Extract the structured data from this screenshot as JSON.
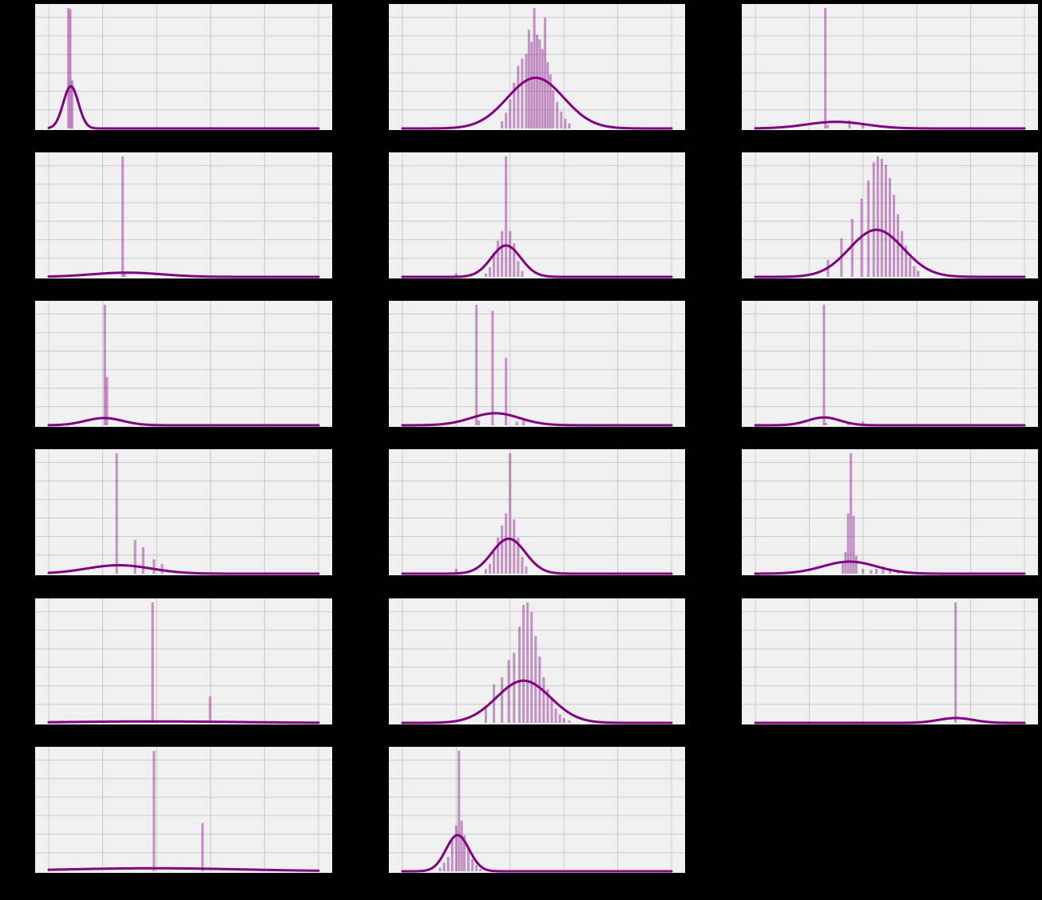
{
  "colors": {
    "figure_background": "#000000",
    "axes_background": "#f0f0f0",
    "grid": "#cbcbcb",
    "curve": "#800080",
    "bars": "#800080",
    "bar_opacity": 0.4
  },
  "layout": {
    "rows": 6,
    "cols": 3
  },
  "chart_data": [
    {
      "type": "bar",
      "title": "",
      "grid": true,
      "xlim": [
        0,
        100
      ],
      "bars": [
        [
          7.3,
          1.0
        ],
        [
          8.0,
          0.99
        ],
        [
          8.7,
          0.4
        ]
      ],
      "curve": {
        "mean": 8.2,
        "sd": 2.8,
        "peak": 0.35
      }
    },
    {
      "type": "bar",
      "title": "",
      "grid": true,
      "xlim": [
        0,
        100
      ],
      "bars": [
        [
          37,
          0.06
        ],
        [
          38.5,
          0.13
        ],
        [
          40,
          0.24
        ],
        [
          41.5,
          0.38
        ],
        [
          43,
          0.52
        ],
        [
          44.5,
          0.58
        ],
        [
          46,
          0.62
        ],
        [
          47,
          0.82
        ],
        [
          48,
          0.72
        ],
        [
          49,
          1.0
        ],
        [
          50,
          0.78
        ],
        [
          51,
          0.74
        ],
        [
          52,
          0.66
        ],
        [
          53,
          0.92
        ],
        [
          54,
          0.55
        ],
        [
          55,
          0.45
        ],
        [
          56,
          0.32
        ],
        [
          57.5,
          0.22
        ],
        [
          59,
          0.14
        ],
        [
          60.5,
          0.08
        ],
        [
          62,
          0.04
        ]
      ],
      "curve": {
        "mean": 49.5,
        "sd": 10.5,
        "peak": 0.42
      }
    },
    {
      "type": "bar",
      "title": "",
      "grid": true,
      "xlim": [
        0,
        100
      ],
      "bars": [
        [
          26,
          1.0
        ],
        [
          26.9,
          0.03
        ],
        [
          35,
          0.07
        ],
        [
          40,
          0.04
        ]
      ],
      "curve": {
        "mean": 30,
        "sd": 11,
        "peak": 0.055
      }
    },
    {
      "type": "bar",
      "title": "",
      "grid": true,
      "xlim": [
        0,
        100
      ],
      "bars": [
        [
          27.4,
          1.0
        ],
        [
          28.1,
          0.03
        ]
      ],
      "curve": {
        "mean": 29,
        "sd": 13,
        "peak": 0.035
      }
    },
    {
      "type": "bar",
      "title": "",
      "grid": true,
      "xlim": [
        0,
        100
      ],
      "bars": [
        [
          20,
          0.03
        ],
        [
          31,
          0.03
        ],
        [
          32.5,
          0.08
        ],
        [
          34,
          0.2
        ],
        [
          35.5,
          0.3
        ],
        [
          37,
          0.38
        ],
        [
          38.5,
          1.0
        ],
        [
          40,
          0.38
        ],
        [
          41.5,
          0.28
        ],
        [
          43,
          0.13
        ],
        [
          44.5,
          0.05
        ]
      ],
      "curve": {
        "mean": 38.5,
        "sd": 5.5,
        "peak": 0.26
      }
    },
    {
      "type": "bar",
      "title": "",
      "grid": true,
      "xlim": [
        0,
        100
      ],
      "bars": [
        [
          27,
          0.14
        ],
        [
          32,
          0.32
        ],
        [
          36,
          0.48
        ],
        [
          39.5,
          0.65
        ],
        [
          42,
          0.8
        ],
        [
          44,
          0.95
        ],
        [
          45.5,
          1.0
        ],
        [
          47,
          0.98
        ],
        [
          48.5,
          0.93
        ],
        [
          50,
          0.82
        ],
        [
          51.5,
          0.68
        ],
        [
          53,
          0.52
        ],
        [
          54.5,
          0.38
        ],
        [
          56,
          0.26
        ],
        [
          57.5,
          0.16
        ],
        [
          59,
          0.09
        ],
        [
          60.5,
          0.05
        ]
      ],
      "curve": {
        "mean": 45,
        "sd": 10,
        "peak": 0.39
      }
    },
    {
      "type": "bar",
      "title": "",
      "grid": true,
      "xlim": [
        0,
        100
      ],
      "bars": [
        [
          20.8,
          1.0
        ],
        [
          21.6,
          0.4
        ]
      ],
      "curve": {
        "mean": 20.5,
        "sd": 7,
        "peak": 0.06
      }
    },
    {
      "type": "bar",
      "title": "",
      "grid": true,
      "xlim": [
        0,
        100
      ],
      "bars": [
        [
          27.5,
          1.0
        ],
        [
          28.4,
          0.04
        ],
        [
          33.5,
          0.95
        ],
        [
          38.5,
          0.56
        ],
        [
          42.5,
          0.03
        ],
        [
          45,
          0.04
        ]
      ],
      "curve": {
        "mean": 34.5,
        "sd": 9,
        "peak": 0.1
      }
    },
    {
      "type": "bar",
      "title": "",
      "grid": true,
      "xlim": [
        0,
        100
      ],
      "bars": [
        [
          25.5,
          1.0
        ],
        [
          26.3,
          0.02
        ],
        [
          34.5,
          0.02
        ],
        [
          40,
          0.03
        ]
      ],
      "curve": {
        "mean": 25.5,
        "sd": 6,
        "peak": 0.065
      }
    },
    {
      "type": "bar",
      "title": "",
      "grid": true,
      "xlim": [
        0,
        100
      ],
      "bars": [
        [
          25.2,
          1.0
        ],
        [
          32,
          0.28
        ],
        [
          35,
          0.22
        ],
        [
          39,
          0.12
        ],
        [
          42,
          0.08
        ]
      ],
      "curve": {
        "mean": 26,
        "sd": 12,
        "peak": 0.07
      }
    },
    {
      "type": "bar",
      "title": "",
      "grid": true,
      "xlim": [
        0,
        100
      ],
      "bars": [
        [
          20,
          0.04
        ],
        [
          31,
          0.04
        ],
        [
          32.5,
          0.08
        ],
        [
          34,
          0.18
        ],
        [
          35.5,
          0.3
        ],
        [
          37,
          0.4
        ],
        [
          38.5,
          0.5
        ],
        [
          40,
          1.0
        ],
        [
          41.5,
          0.45
        ],
        [
          43,
          0.3
        ],
        [
          44.5,
          0.14
        ],
        [
          46,
          0.06
        ]
      ],
      "curve": {
        "mean": 39.5,
        "sd": 6.2,
        "peak": 0.29
      }
    },
    {
      "type": "bar",
      "title": "",
      "grid": true,
      "xlim": [
        0,
        100
      ],
      "bars": [
        [
          32.5,
          0.1
        ],
        [
          33.5,
          0.18
        ],
        [
          34.5,
          0.5
        ],
        [
          35.5,
          1.0
        ],
        [
          36.5,
          0.48
        ],
        [
          37.5,
          0.15
        ],
        [
          40,
          0.04
        ],
        [
          43,
          0.03
        ],
        [
          45,
          0.04
        ],
        [
          47.5,
          0.06
        ],
        [
          50,
          0.04
        ],
        [
          53,
          0.02
        ]
      ],
      "curve": {
        "mean": 35,
        "sd": 10,
        "peak": 0.1
      }
    },
    {
      "type": "bar",
      "title": "",
      "grid": true,
      "xlim": [
        0,
        100
      ],
      "bars": [
        [
          38.5,
          1.0
        ],
        [
          59.8,
          0.22
        ]
      ],
      "curve": {
        "mean": 38.5,
        "sd": 30,
        "peak": 0.012
      }
    },
    {
      "type": "bar",
      "title": "",
      "grid": true,
      "xlim": [
        0,
        100
      ],
      "bars": [
        [
          31,
          0.12
        ],
        [
          34,
          0.32
        ],
        [
          37,
          0.38
        ],
        [
          39.5,
          0.52
        ],
        [
          41.5,
          0.58
        ],
        [
          43.5,
          0.8
        ],
        [
          45,
          0.98
        ],
        [
          46.5,
          1.0
        ],
        [
          48,
          0.92
        ],
        [
          49.5,
          0.72
        ],
        [
          51,
          0.55
        ],
        [
          52.5,
          0.38
        ],
        [
          54,
          0.28
        ],
        [
          55.5,
          0.2
        ],
        [
          57,
          0.12
        ],
        [
          58.5,
          0.07
        ],
        [
          60,
          0.04
        ],
        [
          62,
          0.02
        ]
      ],
      "curve": {
        "mean": 45,
        "sd": 10,
        "peak": 0.35
      }
    },
    {
      "type": "bar",
      "title": "",
      "grid": true,
      "xlim": [
        0,
        100
      ],
      "bars": [
        [
          74.4,
          1.0
        ]
      ],
      "curve": {
        "mean": 74.5,
        "sd": 6.5,
        "peak": 0.04
      }
    },
    {
      "type": "bar",
      "title": "",
      "grid": true,
      "xlim": [
        0,
        100
      ],
      "bars": [
        [
          39,
          1.0
        ],
        [
          57,
          0.4
        ]
      ],
      "curve": {
        "mean": 39,
        "sd": 33,
        "peak": 0.025
      }
    },
    {
      "type": "bar",
      "title": "",
      "grid": true,
      "xlim": [
        0,
        100
      ],
      "bars": [
        [
          14,
          0.03
        ],
        [
          15.5,
          0.07
        ],
        [
          17,
          0.12
        ],
        [
          18.5,
          0.26
        ],
        [
          20,
          0.38
        ],
        [
          21,
          1.0
        ],
        [
          22,
          0.42
        ],
        [
          23,
          0.3
        ],
        [
          24.5,
          0.2
        ],
        [
          26,
          0.1
        ],
        [
          27.5,
          0.05
        ],
        [
          29,
          0.02
        ]
      ],
      "curve": {
        "mean": 20.5,
        "sd": 4.3,
        "peak": 0.3
      }
    }
  ]
}
